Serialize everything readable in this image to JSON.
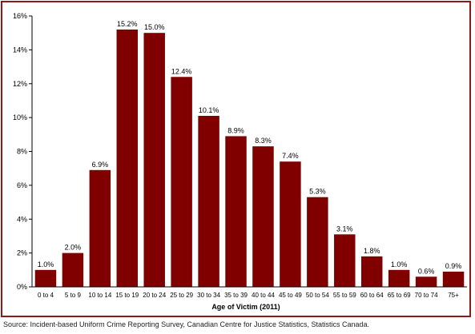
{
  "chart_data": {
    "type": "bar",
    "xlabel": "Age of Victim (2011)",
    "ylabel": "",
    "ylim": [
      0,
      16
    ],
    "yticks": [
      "0%",
      "2%",
      "4%",
      "6%",
      "8%",
      "10%",
      "12%",
      "14%",
      "16%"
    ],
    "categories": [
      "0 to 4",
      "5 to 9",
      "10 to 14",
      "15 to 19",
      "20 to 24",
      "25 to 29",
      "30 to 34",
      "35 to 39",
      "40 to 44",
      "45 to 49",
      "50 to 54",
      "55 to 59",
      "60 to 64",
      "65 to 69",
      "70 to 74",
      "75+"
    ],
    "values": [
      1.0,
      2.0,
      6.9,
      15.2,
      15.0,
      12.4,
      10.1,
      8.9,
      8.3,
      7.4,
      5.3,
      3.1,
      1.8,
      1.0,
      0.6,
      0.9
    ],
    "labels": [
      "1.0%",
      "2.0%",
      "6.9%",
      "15.2%",
      "15.0%",
      "12.4%",
      "10.1%",
      "8.9%",
      "8.3%",
      "7.4%",
      "5.3%",
      "3.1%",
      "1.8%",
      "1.0%",
      "0.6%",
      "0.9%"
    ],
    "grid": false,
    "colors": {
      "bar": "#800000",
      "border": "#8b1a1a"
    }
  },
  "source": "Source:  Incident-based Uniform Crime Reporting Survey, Canadian Centre for Justice Statistics, Statistics Canada."
}
